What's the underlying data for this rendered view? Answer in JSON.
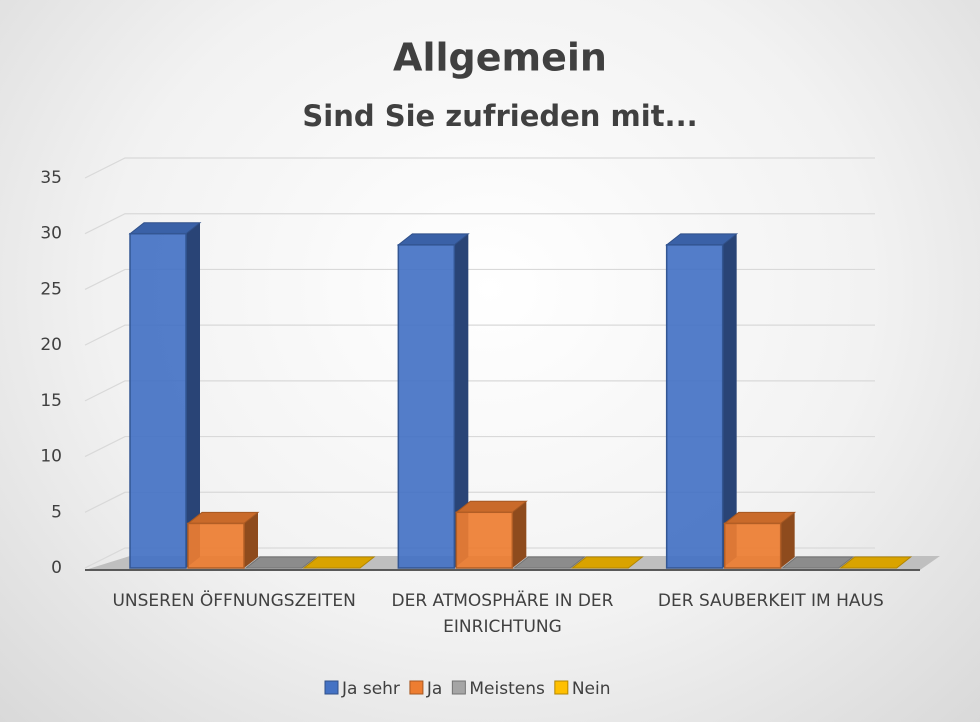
{
  "chart_data": {
    "type": "bar3d",
    "title": "Allgemein",
    "subtitle": "Sind Sie zufrieden mit...",
    "categories": [
      "UNSEREN ÖFFNUNGSZEITEN",
      "DER ATMOSPHÄRE IN DER EINRICHTUNG",
      "DER SAUBERKEIT IM HAUS"
    ],
    "series": [
      {
        "name": "Ja sehr",
        "color": "#4472c4",
        "values": [
          30,
          29,
          29
        ]
      },
      {
        "name": "Ja",
        "color": "#ed7d31",
        "values": [
          4,
          5,
          4
        ]
      },
      {
        "name": "Meistens",
        "color": "#a5a5a5",
        "values": [
          0,
          0,
          0
        ]
      },
      {
        "name": "Nein",
        "color": "#ffc000",
        "values": [
          0,
          0,
          0
        ]
      }
    ],
    "ylim": [
      0,
      35
    ],
    "yticks": [
      0,
      5,
      10,
      15,
      20,
      25,
      30,
      35
    ],
    "grid": true,
    "legend": "bottom"
  }
}
